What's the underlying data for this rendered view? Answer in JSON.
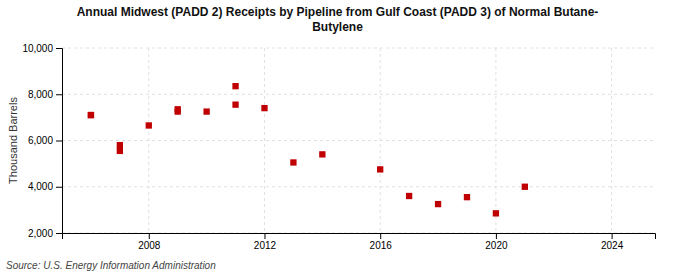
{
  "chart_data": {
    "type": "scatter",
    "title": "Annual Midwest (PADD 2) Receipts by Pipeline from Gulf Coast (PADD 3) of Normal Butane-\nButylene",
    "ylabel": "Thousand Barrels",
    "source": "Source: U.S. Energy Information Administration",
    "x": [
      2006,
      2006,
      2007,
      2007,
      2008,
      2009,
      2009,
      2010,
      2011,
      2011,
      2012,
      2013,
      2014,
      2016,
      2017,
      2018,
      2019,
      2020,
      2021
    ],
    "values": [
      7100,
      7100,
      5800,
      5550,
      6650,
      7350,
      7250,
      7250,
      8350,
      7550,
      7400,
      5050,
      5400,
      4750,
      3600,
      3250,
      3550,
      2850,
      4000
    ],
    "color": "#c00000",
    "marker": "square",
    "xlim": [
      2005,
      2025.5
    ],
    "ylim": [
      2000,
      10000
    ],
    "xticks": [
      2008,
      2012,
      2016,
      2020,
      2024
    ],
    "yticks": [
      {
        "value": 2000,
        "label": "2,000"
      },
      {
        "value": 4000,
        "label": "4,000"
      },
      {
        "value": 6000,
        "label": "6,000"
      },
      {
        "value": 8000,
        "label": "8,000"
      },
      {
        "value": 10000,
        "label": "10,000"
      }
    ],
    "grid": true
  }
}
